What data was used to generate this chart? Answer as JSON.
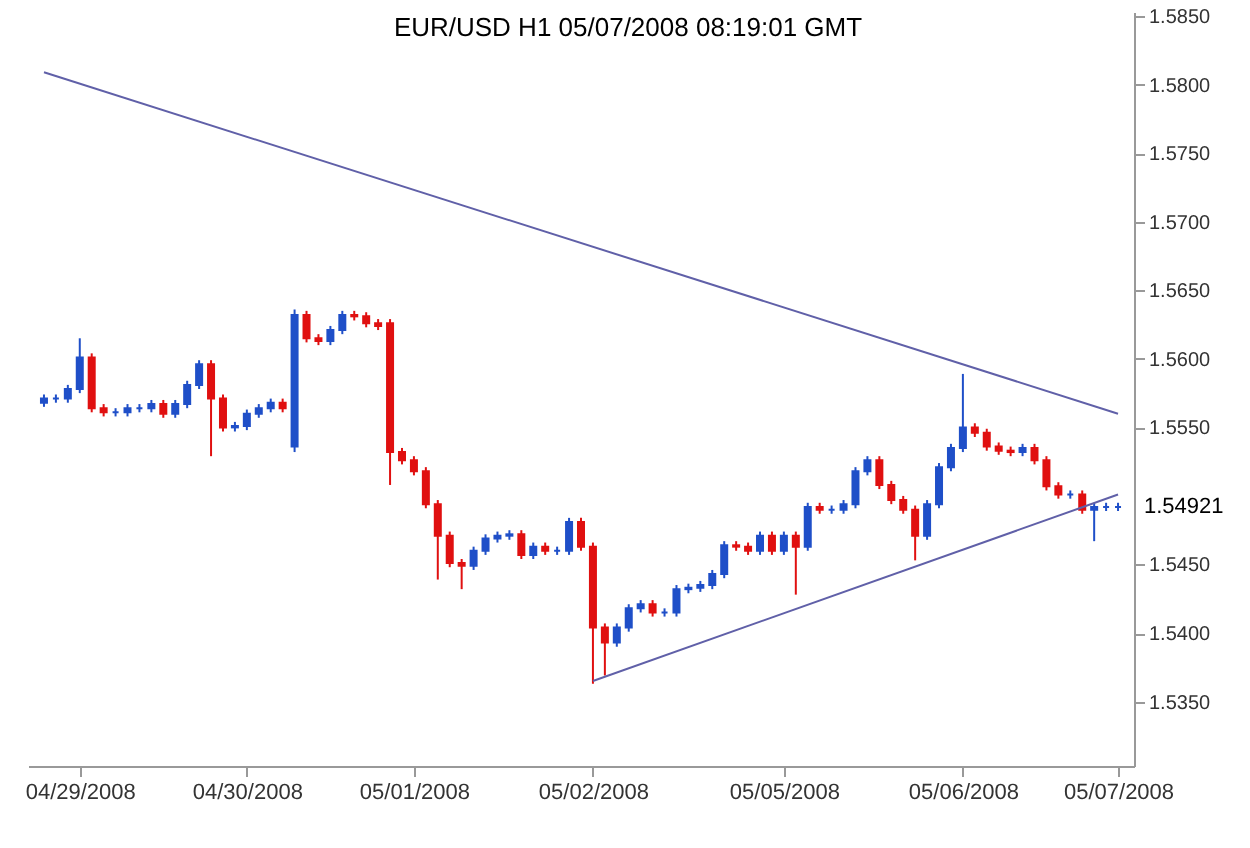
{
  "chart_data": {
    "type": "candlestick",
    "title": "EUR/USD  H1  05/07/2008 08:19:01 GMT",
    "categories": [
      null,
      null,
      null,
      "04/29/2008",
      null,
      null,
      null,
      null,
      null,
      null,
      null,
      null,
      null,
      null,
      null,
      null,
      null,
      "04/30/2008",
      null,
      null,
      null,
      null,
      null,
      null,
      null,
      null,
      null,
      null,
      null,
      null,
      null,
      "05/01/2008",
      null,
      null,
      null,
      null,
      null,
      null,
      null,
      null,
      null,
      null,
      null,
      null,
      null,
      null,
      "05/02/2008",
      null,
      null,
      null,
      null,
      null,
      null,
      null,
      null,
      null,
      null,
      null,
      null,
      null,
      null,
      null,
      "05/05/2008",
      null,
      null,
      null,
      null,
      null,
      null,
      null,
      null,
      null,
      null,
      null,
      null,
      null,
      null,
      "05/06/2008",
      null,
      null,
      null,
      null,
      null,
      null,
      null,
      null,
      null,
      null,
      null,
      null,
      "05/07/2008"
    ],
    "ylim": [
      1.5303,
      1.5853
    ],
    "yticks": [
      {
        "value": 1.535,
        "label": "1.5350"
      },
      {
        "value": 1.54,
        "label": "1.5400"
      },
      {
        "value": 1.545,
        "label": "1.5450"
      },
      {
        "value": 1.555,
        "label": "1.5550"
      },
      {
        "value": 1.56,
        "label": "1.5600"
      },
      {
        "value": 1.565,
        "label": "1.5650"
      },
      {
        "value": 1.57,
        "label": "1.5700"
      },
      {
        "value": 1.575,
        "label": "1.5750"
      },
      {
        "value": 1.58,
        "label": "1.5800"
      },
      {
        "value": 1.585,
        "label": "1.5850"
      }
    ],
    "grid": false,
    "series": [
      {
        "type": "candlestick",
        "colors": [
          "#1f4fc8",
          "#1f4fc8",
          "#1f4fc8",
          "#1f4fc8",
          "#e01010",
          "#e01010",
          "#1f4fc8",
          "#1f4fc8",
          "#1f4fc8",
          "#1f4fc8",
          "#e01010",
          "#1f4fc8",
          "#1f4fc8",
          "#1f4fc8",
          "#e01010",
          "#e01010",
          "#1f4fc8",
          "#1f4fc8",
          "#1f4fc8",
          "#1f4fc8",
          "#e01010",
          "#1f4fc8",
          "#e01010",
          "#e01010",
          "#1f4fc8",
          "#1f4fc8",
          "#e01010",
          "#e01010",
          "#e01010",
          "#e01010",
          "#e01010",
          "#e01010",
          "#e01010",
          "#e01010",
          "#e01010",
          "#e01010",
          "#1f4fc8",
          "#1f4fc8",
          "#1f4fc8",
          "#1f4fc8",
          "#e01010",
          "#1f4fc8",
          "#e01010",
          "#1f4fc8",
          "#1f4fc8",
          "#e01010",
          "#e01010",
          "#e01010",
          "#1f4fc8",
          "#1f4fc8",
          "#1f4fc8",
          "#e01010",
          "#1f4fc8",
          "#1f4fc8",
          "#1f4fc8",
          "#1f4fc8",
          "#1f4fc8",
          "#1f4fc8",
          "#e01010",
          "#e01010",
          "#1f4fc8",
          "#e01010",
          "#1f4fc8",
          "#e01010",
          "#1f4fc8",
          "#e01010",
          "#1f4fc8",
          "#1f4fc8",
          "#1f4fc8",
          "#1f4fc8",
          "#e01010",
          "#e01010",
          "#e01010",
          "#e01010",
          "#1f4fc8",
          "#1f4fc8",
          "#1f4fc8",
          "#1f4fc8",
          "#e01010",
          "#e01010",
          "#e01010",
          "#e01010",
          "#1f4fc8",
          "#e01010",
          "#e01010",
          "#e01010",
          "#1f4fc8",
          "#e01010",
          "#1f4fc8",
          "#1f4fc8",
          "#1f4fc8"
        ],
        "ohlc": [
          [
            1.5568,
            1.5574,
            1.5565,
            1.5571
          ],
          [
            1.5571,
            1.5574,
            1.5568,
            1.5571
          ],
          [
            1.5571,
            1.5581,
            1.5568,
            1.5578
          ],
          [
            1.5578,
            1.5615,
            1.5575,
            1.5601
          ],
          [
            1.5601,
            1.5604,
            1.5561,
            1.5564
          ],
          [
            1.5564,
            1.5567,
            1.5558,
            1.5561
          ],
          [
            1.5561,
            1.5564,
            1.5558,
            1.5561
          ],
          [
            1.5561,
            1.5567,
            1.5558,
            1.5564
          ],
          [
            1.5564,
            1.5567,
            1.5561,
            1.5564
          ],
          [
            1.5564,
            1.557,
            1.5561,
            1.5567
          ],
          [
            1.5567,
            1.557,
            1.5557,
            1.556
          ],
          [
            1.556,
            1.557,
            1.5557,
            1.5567
          ],
          [
            1.5567,
            1.5584,
            1.5564,
            1.5581
          ],
          [
            1.5581,
            1.5599,
            1.5578,
            1.5596
          ],
          [
            1.5596,
            1.5599,
            1.5529,
            1.5571
          ],
          [
            1.5571,
            1.5574,
            1.5547,
            1.555
          ],
          [
            1.555,
            1.5554,
            1.5547,
            1.5551
          ],
          [
            1.5551,
            1.5563,
            1.5548,
            1.556
          ],
          [
            1.556,
            1.5567,
            1.5557,
            1.5564
          ],
          [
            1.5564,
            1.5571,
            1.5561,
            1.5568
          ],
          [
            1.5568,
            1.5571,
            1.5561,
            1.5564
          ],
          [
            1.5536,
            1.5636,
            1.5532,
            1.5632
          ],
          [
            1.5632,
            1.5635,
            1.5612,
            1.5615
          ],
          [
            1.5615,
            1.5618,
            1.561,
            1.5613
          ],
          [
            1.5613,
            1.5624,
            1.561,
            1.5621
          ],
          [
            1.5621,
            1.5635,
            1.5618,
            1.5632
          ],
          [
            1.5632,
            1.5635,
            1.5628,
            1.5631
          ],
          [
            1.5631,
            1.5634,
            1.5623,
            1.5626
          ],
          [
            1.5626,
            1.5629,
            1.5621,
            1.5624
          ],
          [
            1.5626,
            1.5629,
            1.5508,
            1.5532
          ],
          [
            1.5532,
            1.5535,
            1.5523,
            1.5526
          ],
          [
            1.5526,
            1.5529,
            1.5515,
            1.5518
          ],
          [
            1.5518,
            1.5521,
            1.5491,
            1.5494
          ],
          [
            1.5494,
            1.5497,
            1.5439,
            1.5471
          ],
          [
            1.5471,
            1.5474,
            1.5448,
            1.5451
          ],
          [
            1.5451,
            1.5454,
            1.5432,
            1.5449
          ],
          [
            1.5449,
            1.5463,
            1.5446,
            1.546
          ],
          [
            1.546,
            1.5472,
            1.5457,
            1.5469
          ],
          [
            1.5469,
            1.5474,
            1.5466,
            1.5471
          ],
          [
            1.5471,
            1.5475,
            1.5468,
            1.5472
          ],
          [
            1.5472,
            1.5475,
            1.5454,
            1.5457
          ],
          [
            1.5457,
            1.5466,
            1.5454,
            1.5463
          ],
          [
            1.5463,
            1.5466,
            1.5457,
            1.546
          ],
          [
            1.546,
            1.5463,
            1.5457,
            1.546
          ],
          [
            1.546,
            1.5484,
            1.5457,
            1.5481
          ],
          [
            1.5481,
            1.5484,
            1.546,
            1.5463
          ],
          [
            1.5463,
            1.5466,
            1.5363,
            1.5404
          ],
          [
            1.5404,
            1.5407,
            1.5369,
            1.5393
          ],
          [
            1.5393,
            1.5407,
            1.539,
            1.5404
          ],
          [
            1.5404,
            1.5421,
            1.5401,
            1.5418
          ],
          [
            1.5418,
            1.5424,
            1.5415,
            1.5421
          ],
          [
            1.5421,
            1.5424,
            1.5412,
            1.5415
          ],
          [
            1.5415,
            1.5418,
            1.5412,
            1.5415
          ],
          [
            1.5415,
            1.5435,
            1.5412,
            1.5432
          ],
          [
            1.5432,
            1.5436,
            1.5429,
            1.5433
          ],
          [
            1.5433,
            1.5438,
            1.543,
            1.5435
          ],
          [
            1.5435,
            1.5446,
            1.5432,
            1.5443
          ],
          [
            1.5443,
            1.5467,
            1.544,
            1.5464
          ],
          [
            1.5464,
            1.5467,
            1.546,
            1.5463
          ],
          [
            1.5463,
            1.5466,
            1.5457,
            1.546
          ],
          [
            1.546,
            1.5474,
            1.5457,
            1.5471
          ],
          [
            1.5471,
            1.5474,
            1.5457,
            1.546
          ],
          [
            1.546,
            1.5474,
            1.5457,
            1.5471
          ],
          [
            1.5471,
            1.5474,
            1.5428,
            1.5463
          ],
          [
            1.5463,
            1.5495,
            1.546,
            1.5492
          ],
          [
            1.5492,
            1.5495,
            1.5487,
            1.549
          ],
          [
            1.549,
            1.5493,
            1.5487,
            1.549
          ],
          [
            1.549,
            1.5497,
            1.5487,
            1.5494
          ],
          [
            1.5494,
            1.5521,
            1.5491,
            1.5518
          ],
          [
            1.5518,
            1.5529,
            1.5515,
            1.5526
          ],
          [
            1.5526,
            1.5529,
            1.5505,
            1.5508
          ],
          [
            1.5508,
            1.5511,
            1.5494,
            1.5497
          ],
          [
            1.5497,
            1.55,
            1.5487,
            1.549
          ],
          [
            1.549,
            1.5493,
            1.5453,
            1.5471
          ],
          [
            1.5471,
            1.5497,
            1.5468,
            1.5494
          ],
          [
            1.5494,
            1.5524,
            1.5491,
            1.5521
          ],
          [
            1.5521,
            1.5538,
            1.5518,
            1.5535
          ],
          [
            1.5535,
            1.5589,
            1.5532,
            1.555
          ],
          [
            1.555,
            1.5553,
            1.5543,
            1.5546
          ],
          [
            1.5546,
            1.5549,
            1.5533,
            1.5536
          ],
          [
            1.5536,
            1.5539,
            1.553,
            1.5533
          ],
          [
            1.5533,
            1.5536,
            1.5529,
            1.5532
          ],
          [
            1.5532,
            1.5538,
            1.5529,
            1.5535
          ],
          [
            1.5535,
            1.5538,
            1.5523,
            1.5526
          ],
          [
            1.5526,
            1.5529,
            1.5504,
            1.5507
          ],
          [
            1.5507,
            1.551,
            1.5498,
            1.5501
          ],
          [
            1.5501,
            1.5504,
            1.5498,
            1.5501
          ],
          [
            1.5501,
            1.5504,
            1.5487,
            1.549
          ],
          [
            1.549,
            1.5495,
            1.5467,
            1.5492
          ],
          [
            1.5492,
            1.5495,
            1.5489,
            1.5492
          ],
          [
            1.5492,
            1.5495,
            1.5489,
            1.5492
          ]
        ]
      },
      {
        "type": "line",
        "color": "#6060a8",
        "values": [
          1.5809,
          null,
          null,
          null,
          null,
          null,
          null,
          null,
          null,
          null,
          null,
          null,
          null,
          null,
          null,
          null,
          null,
          null,
          null,
          null,
          null,
          null,
          null,
          null,
          null,
          null,
          null,
          null,
          null,
          null,
          null,
          null,
          null,
          null,
          null,
          null,
          null,
          null,
          null,
          null,
          null,
          null,
          null,
          null,
          null,
          null,
          null,
          null,
          null,
          null,
          null,
          null,
          null,
          null,
          null,
          null,
          null,
          null,
          null,
          null,
          null,
          null,
          null,
          null,
          null,
          null,
          null,
          null,
          null,
          null,
          null,
          null,
          null,
          null,
          null,
          null,
          null,
          null,
          null,
          null,
          null,
          null,
          null,
          null,
          null,
          null,
          null,
          null,
          null,
          null,
          1.556
        ]
      },
      {
        "type": "line",
        "color": "#6060a8",
        "values": [
          null,
          null,
          null,
          null,
          null,
          null,
          null,
          null,
          null,
          null,
          null,
          null,
          null,
          null,
          null,
          null,
          null,
          null,
          null,
          null,
          null,
          null,
          null,
          null,
          null,
          null,
          null,
          null,
          null,
          null,
          null,
          null,
          null,
          null,
          null,
          null,
          null,
          null,
          null,
          null,
          null,
          null,
          null,
          null,
          null,
          null,
          1.5365,
          null,
          null,
          null,
          null,
          null,
          null,
          null,
          null,
          null,
          null,
          null,
          null,
          null,
          null,
          null,
          null,
          null,
          null,
          null,
          null,
          null,
          null,
          null,
          null,
          null,
          null,
          null,
          null,
          null,
          null,
          null,
          null,
          null,
          null,
          null,
          null,
          null,
          null,
          null,
          null,
          null,
          null,
          null,
          1.5501
        ]
      }
    ],
    "annotations": [
      "1.54921"
    ]
  }
}
